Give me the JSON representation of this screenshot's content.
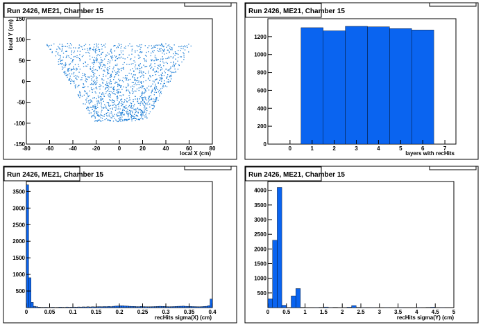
{
  "chart_data": [
    {
      "type": "scatter",
      "title": "Run 2426, ME21, Chamber 15",
      "xlabel": "local X (cm)",
      "ylabel": "local Y (cm)",
      "xlim": [
        -80,
        80
      ],
      "ylim": [
        -150,
        150
      ],
      "xticks": [
        -80,
        -60,
        -40,
        -20,
        0,
        20,
        40,
        60,
        80
      ],
      "yticks": [
        -150,
        -100,
        -50,
        0,
        50,
        100,
        150
      ],
      "color": "#1f7fd6",
      "region": {
        "y_top": 92,
        "y_bottom": -95,
        "half_width_top": 64,
        "half_width_bottom": 22
      }
    },
    {
      "type": "bar",
      "title": "Run 2426, ME21, Chamber 15",
      "xlabel": "layers with recHits",
      "ylabel": "",
      "xlim": [
        -1,
        7.5
      ],
      "ylim": [
        0,
        1400
      ],
      "xticks": [
        0,
        1,
        2,
        3,
        4,
        5,
        6,
        7
      ],
      "yticks": [
        0,
        200,
        400,
        600,
        800,
        1000,
        1200
      ],
      "bin_width": 1,
      "x": [
        1,
        2,
        3,
        4,
        5,
        6
      ],
      "values": [
        1300,
        1265,
        1315,
        1310,
        1290,
        1275
      ],
      "color": "#0a64f0"
    },
    {
      "type": "bar",
      "title": "Run 2426, ME21, Chamber 15",
      "xlabel": "recHits sigma(X) (cm)",
      "ylabel": "",
      "xlim": [
        0,
        0.4
      ],
      "ylim": [
        0,
        3800
      ],
      "xticks": [
        "0",
        "0.05",
        "0.1",
        "0.15",
        "0.2",
        "0.25",
        "0.3",
        "0.35",
        "0.4"
      ],
      "ytick_values": [
        500,
        1000,
        1500,
        2000,
        2500,
        3000,
        3500
      ],
      "bin_width": 0.005,
      "x": [
        0.0025,
        0.0075,
        0.0125,
        0.0175,
        0.0225,
        0.0275,
        0.0325,
        0.0375,
        0.0425,
        0.0475,
        0.0525,
        0.0575,
        0.0625,
        0.0675,
        0.0725,
        0.0775,
        0.0825,
        0.0875,
        0.0925,
        0.0975,
        0.1025,
        0.1075,
        0.1125,
        0.1175,
        0.1225,
        0.1275,
        0.1325,
        0.1375,
        0.1425,
        0.1475,
        0.1525,
        0.1575,
        0.1625,
        0.1675,
        0.1725,
        0.1775,
        0.1825,
        0.1875,
        0.1925,
        0.1975,
        0.2025,
        0.2075,
        0.2125,
        0.2175,
        0.2225,
        0.2275,
        0.2325,
        0.2375,
        0.2425,
        0.2475,
        0.2525,
        0.2575,
        0.2625,
        0.2675,
        0.2725,
        0.2775,
        0.2825,
        0.2875,
        0.2925,
        0.2975,
        0.3025,
        0.3075,
        0.3125,
        0.3175,
        0.3225,
        0.3275,
        0.3325,
        0.3375,
        0.3425,
        0.3475,
        0.3525,
        0.3575,
        0.3625,
        0.3675,
        0.3725,
        0.3775,
        0.3825,
        0.3875,
        0.3925,
        0.3975
      ],
      "values": [
        3700,
        900,
        160,
        40,
        25,
        15,
        10,
        10,
        12,
        8,
        10,
        12,
        8,
        10,
        15,
        12,
        10,
        18,
        12,
        15,
        18,
        15,
        20,
        18,
        22,
        20,
        25,
        20,
        25,
        22,
        28,
        30,
        28,
        32,
        30,
        35,
        30,
        40,
        45,
        50,
        55,
        55,
        50,
        45,
        40,
        38,
        35,
        30,
        30,
        35,
        30,
        28,
        25,
        28,
        30,
        32,
        35,
        40,
        38,
        35,
        30,
        28,
        30,
        32,
        35,
        40,
        42,
        45,
        40,
        38,
        35,
        32,
        30,
        28,
        25,
        30,
        35,
        40,
        60,
        260
      ],
      "color": "#0a64f0"
    },
    {
      "type": "bar",
      "title": "Run 2426, ME21, Chamber 15",
      "xlabel": "recHits sigma(Y) (cm)",
      "ylabel": "",
      "xlim": [
        0,
        5
      ],
      "ylim": [
        0,
        4300
      ],
      "xticks": [
        "0",
        "0.5",
        "1",
        "1.5",
        "2",
        "2.5",
        "3",
        "3.5",
        "4",
        "4.5",
        "5"
      ],
      "ytick_values": [
        500,
        1000,
        1500,
        2000,
        2500,
        3000,
        3500,
        4000
      ],
      "bin_width": 0.125,
      "x": [
        0.0625,
        0.1875,
        0.3125,
        0.4375,
        0.5625,
        0.6875,
        0.8125,
        0.9375,
        1.0625,
        1.1875,
        1.3125,
        1.4375,
        1.5625,
        1.6875,
        1.8125,
        1.9375,
        2.0625,
        2.1875,
        2.3125,
        2.4375,
        2.5625,
        2.6875,
        2.8125,
        2.9375,
        3.0625,
        3.1875,
        3.3125,
        3.4375,
        3.5625,
        3.6875,
        3.8125,
        3.9375,
        4.0625,
        4.1875,
        4.3125,
        4.4375,
        4.5625,
        4.6875,
        4.8125,
        4.9375
      ],
      "values": [
        300,
        2300,
        4100,
        80,
        0,
        400,
        650,
        10,
        0,
        0,
        5,
        10,
        20,
        5,
        10,
        0,
        0,
        15,
        70,
        10,
        5,
        0,
        5,
        0,
        0,
        5,
        0,
        0,
        5,
        0,
        0,
        0,
        5,
        0,
        10,
        15,
        0,
        5,
        0,
        0
      ],
      "color": "#0a64f0"
    }
  ]
}
